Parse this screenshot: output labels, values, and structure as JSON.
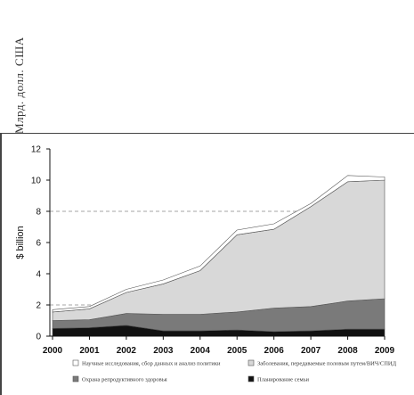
{
  "outer_ylabel": "Млрд. долл. США",
  "chart_data": {
    "type": "area",
    "stacked": true,
    "x": [
      2000,
      2001,
      2002,
      2003,
      2004,
      2005,
      2006,
      2007,
      2008,
      2009
    ],
    "ylabel": "$ billion",
    "ylim": [
      0,
      12
    ],
    "yticks": [
      0,
      2,
      4,
      6,
      8,
      10,
      12
    ],
    "reference_lines": [
      2,
      8
    ],
    "series": [
      {
        "name": "Планирование семьи",
        "color": "#111111",
        "values": [
          0.5,
          0.55,
          0.7,
          0.35,
          0.35,
          0.4,
          0.3,
          0.35,
          0.45,
          0.45
        ]
      },
      {
        "name": "Охрана репродуктивного здоровья",
        "color": "#7a7a7a",
        "values": [
          0.5,
          0.5,
          0.75,
          1.05,
          1.05,
          1.15,
          1.5,
          1.55,
          1.8,
          1.95
        ]
      },
      {
        "name": "Заболевания, передаваемые половым путем/ВИЧ/СПИД",
        "color": "#d8d8d8",
        "values": [
          0.55,
          0.7,
          1.35,
          1.95,
          2.8,
          4.95,
          5.05,
          6.4,
          7.65,
          7.6
        ]
      },
      {
        "name": "Научные исследования, сбор данных и анализ политики",
        "color": "#ffffff",
        "values": [
          0.15,
          0.15,
          0.2,
          0.25,
          0.3,
          0.3,
          0.35,
          0.2,
          0.4,
          0.2
        ]
      }
    ],
    "legend_position": "bottom"
  }
}
